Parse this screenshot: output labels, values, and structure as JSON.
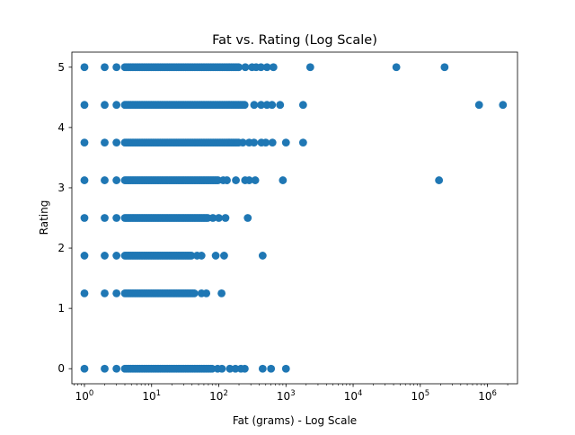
{
  "chart_data": {
    "type": "scatter",
    "title": "Fat vs. Rating (Log Scale)",
    "xlabel": "Fat (grams) - Log Scale",
    "ylabel": "Rating",
    "x_scale": "log",
    "xlim": [
      0.65,
      2800000
    ],
    "ylim": [
      -0.25,
      5.25
    ],
    "x_ticks": [
      {
        "value": 1,
        "base": "10",
        "exp": "0"
      },
      {
        "value": 10,
        "base": "10",
        "exp": "1"
      },
      {
        "value": 100,
        "base": "10",
        "exp": "2"
      },
      {
        "value": 1000,
        "base": "10",
        "exp": "3"
      },
      {
        "value": 10000,
        "base": "10",
        "exp": "4"
      },
      {
        "value": 100000,
        "base": "10",
        "exp": "5"
      },
      {
        "value": 1000000,
        "base": "10",
        "exp": "6"
      }
    ],
    "y_ticks": [
      {
        "value": 0,
        "label": "0"
      },
      {
        "value": 1,
        "label": "1"
      },
      {
        "value": 2,
        "label": "2"
      },
      {
        "value": 3,
        "label": "3"
      },
      {
        "value": 4,
        "label": "4"
      },
      {
        "value": 5,
        "label": "5"
      }
    ],
    "grid": false,
    "marker_color": "#1f77b4",
    "rating_levels": [
      {
        "rating": 5.0,
        "dense_min": 1,
        "dense_max": 200,
        "scatter_max": 700,
        "outliers": [
          2300,
          44000,
          230000
        ]
      },
      {
        "rating": 4.375,
        "dense_min": 1,
        "dense_max": 250,
        "scatter_max": 900,
        "outliers": [
          1800,
          750000,
          1700000
        ]
      },
      {
        "rating": 3.75,
        "dense_min": 1,
        "dense_max": 200,
        "scatter_max": 700,
        "outliers": [
          1000,
          1800
        ]
      },
      {
        "rating": 3.125,
        "dense_min": 1,
        "dense_max": 100,
        "scatter_max": 400,
        "outliers": [
          900,
          190000
        ]
      },
      {
        "rating": 2.5,
        "dense_min": 1,
        "dense_max": 70,
        "scatter_max": 130,
        "outliers": [
          270
        ]
      },
      {
        "rating": 1.875,
        "dense_min": 1,
        "dense_max": 40,
        "scatter_max": 60,
        "outliers": [
          90,
          120,
          450
        ]
      },
      {
        "rating": 1.25,
        "dense_min": 1,
        "dense_max": 45,
        "scatter_max": 80,
        "outliers": [
          110
        ]
      },
      {
        "rating": 0.0,
        "dense_min": 1,
        "dense_max": 80,
        "scatter_max": 300,
        "outliers": [
          450,
          600,
          1000
        ]
      }
    ]
  }
}
